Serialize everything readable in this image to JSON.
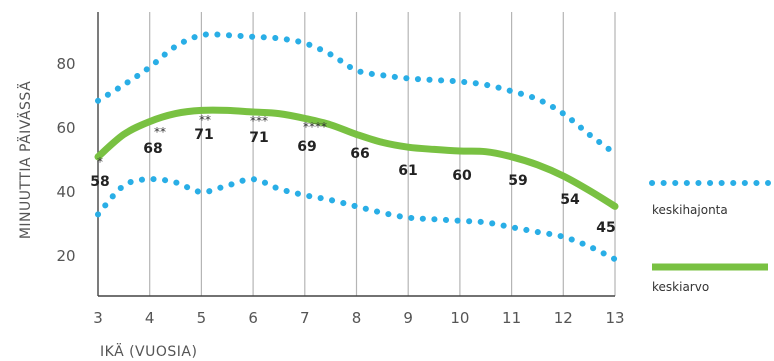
{
  "chart_data": {
    "type": "line",
    "xlabel": "IKÄ (VUOSIA)",
    "ylabel": "MINUUTTIA PÄIVÄSSÄ",
    "x": [
      3,
      4,
      5,
      6,
      7,
      8,
      9,
      10,
      11,
      12,
      13
    ],
    "x_ticks": [
      "3",
      "4",
      "5",
      "6",
      "7",
      "8",
      "9",
      "10",
      "11",
      "12",
      "13"
    ],
    "y_ticks": [
      "20",
      "40",
      "60",
      "80"
    ],
    "xlim": [
      3,
      13
    ],
    "ylim": [
      12,
      100
    ],
    "grid": "vertical",
    "series": [
      {
        "name": "keskiarvo",
        "color": "#79c142",
        "style": "solid",
        "x": [
          3,
          3.5,
          4,
          4.5,
          5,
          5.5,
          6,
          6.5,
          7,
          7.5,
          8,
          8.5,
          9,
          9.5,
          10,
          10.5,
          11,
          11.5,
          12,
          12.5,
          13
        ],
        "values": [
          51,
          58,
          62,
          64.5,
          65.5,
          65.5,
          65,
          64.5,
          63,
          61,
          58,
          55.5,
          54,
          53.3,
          52.8,
          52.6,
          51,
          48.5,
          45,
          40.5,
          35.5
        ]
      },
      {
        "name": "keskihajonta",
        "color": "#29aee6",
        "style": "dotted",
        "x": [
          3,
          3.5,
          4,
          4.5,
          5,
          5.5,
          6,
          6.5,
          7,
          7.5,
          8,
          8.5,
          9,
          9.5,
          10,
          10.5,
          11,
          11.5,
          12,
          12.5,
          13
        ],
        "values": [
          68.5,
          73.5,
          79,
          85.5,
          89,
          89,
          88.5,
          88,
          86.5,
          83,
          78,
          76.5,
          75.5,
          75,
          74.5,
          73.5,
          71.5,
          69,
          64.5,
          58,
          52
        ]
      },
      {
        "name": "keskihajonta",
        "color": "#29aee6",
        "style": "dotted",
        "x": [
          3,
          3.5,
          4,
          4.5,
          5,
          5.5,
          6,
          6.5,
          7,
          7.5,
          8,
          8.5,
          9,
          9.5,
          10,
          10.5,
          11,
          11.5,
          12,
          12.5,
          13
        ],
        "values": [
          33,
          42,
          44,
          43,
          40,
          42,
          44,
          41,
          39,
          37.5,
          35.5,
          33.5,
          32,
          31.5,
          31,
          30.5,
          29,
          27.5,
          26,
          23,
          19
        ]
      }
    ],
    "point_labels": [
      {
        "x": 3,
        "label": "58",
        "stars": "*"
      },
      {
        "x": 4,
        "label": "68",
        "stars": "**"
      },
      {
        "x": 5,
        "label": "71",
        "stars": "**"
      },
      {
        "x": 6,
        "label": "71",
        "stars": "***"
      },
      {
        "x": 7,
        "label": "69",
        "stars": "****"
      },
      {
        "x": 8,
        "label": "66",
        "stars": ""
      },
      {
        "x": 9,
        "label": "61",
        "stars": ""
      },
      {
        "x": 10,
        "label": "60",
        "stars": ""
      },
      {
        "x": 11,
        "label": "59",
        "stars": ""
      },
      {
        "x": 12,
        "label": "54",
        "stars": ""
      },
      {
        "x": 13,
        "label": "45",
        "stars": ""
      }
    ],
    "legend": {
      "placement": "right",
      "items": [
        {
          "label": "keskihajonta",
          "style": "dotted",
          "color": "#29aee6"
        },
        {
          "label": "keskiarvo",
          "style": "solid",
          "color": "#79c142"
        }
      ]
    }
  }
}
